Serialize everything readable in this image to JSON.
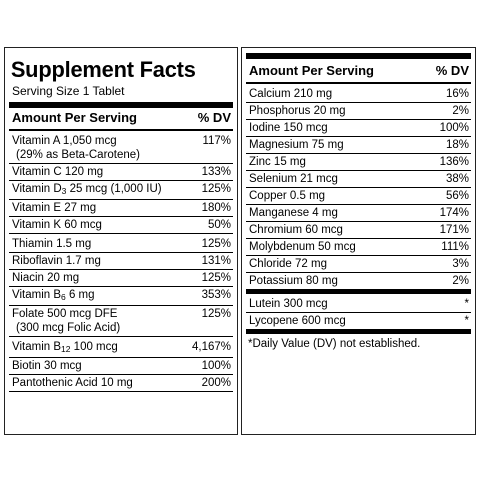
{
  "left": {
    "title": "Supplement Facts",
    "serving": "Serving Size 1 Tablet",
    "header": {
      "amount": "Amount Per Serving",
      "dv": "% DV"
    },
    "rows": [
      {
        "name": "Vitamin A 1,050 mcg",
        "sub": "(29% as Beta-Carotene)",
        "dv": "117%"
      },
      {
        "name": "Vitamin C 120 mg",
        "dv": "133%"
      },
      {
        "pre": "Vitamin D",
        "s": "3",
        "post": " 25 mcg (1,000 IU)",
        "dv": "125%"
      },
      {
        "name": "Vitamin E 27 mg",
        "dv": "180%"
      },
      {
        "name": "Vitamin K 60 mcg",
        "dv": "50%"
      },
      {
        "name": "Thiamin 1.5 mg",
        "dv": "125%"
      },
      {
        "name": "Riboflavin 1.7 mg",
        "dv": "131%"
      },
      {
        "name": "Niacin 20 mg",
        "dv": "125%"
      },
      {
        "pre": "Vitamin B",
        "s": "6",
        "post": " 6 mg",
        "dv": "353%"
      },
      {
        "name": "Folate 500 mcg DFE",
        "sub": "(300 mcg Folic Acid)",
        "dv": "125%"
      },
      {
        "pre": "Vitamin B",
        "s": "12",
        "post": " 100 mcg",
        "dv": "4,167%"
      },
      {
        "name": "Biotin 30 mcg",
        "dv": "100%"
      },
      {
        "name": "Pantothenic Acid 10 mg",
        "dv": "200%"
      }
    ]
  },
  "right": {
    "header": {
      "amount": "Amount Per Serving",
      "dv": "% DV"
    },
    "rows": [
      {
        "name": "Calcium 210 mg",
        "dv": "16%"
      },
      {
        "name": "Phosphorus 20 mg",
        "dv": "2%"
      },
      {
        "name": "Iodine 150 mcg",
        "dv": "100%"
      },
      {
        "name": "Magnesium 75 mg",
        "dv": "18%"
      },
      {
        "name": "Zinc 15 mg",
        "dv": "136%"
      },
      {
        "name": "Selenium 21 mcg",
        "dv": "38%"
      },
      {
        "name": "Copper 0.5 mg",
        "dv": "56%"
      },
      {
        "name": "Manganese 4 mg",
        "dv": "174%"
      },
      {
        "name": "Chromium 60 mcg",
        "dv": "171%"
      },
      {
        "name": "Molybdenum 50 mcg",
        "dv": "111%"
      },
      {
        "name": "Chloride 72 mg",
        "dv": "3%"
      },
      {
        "name": "Potassium 80 mg",
        "dv": "2%"
      }
    ],
    "rows2": [
      {
        "name": "Lutein 300 mcg",
        "dv": "*"
      },
      {
        "name": "Lycopene 600 mcg",
        "dv": "*"
      }
    ],
    "footnote": "*Daily Value (DV) not established."
  }
}
